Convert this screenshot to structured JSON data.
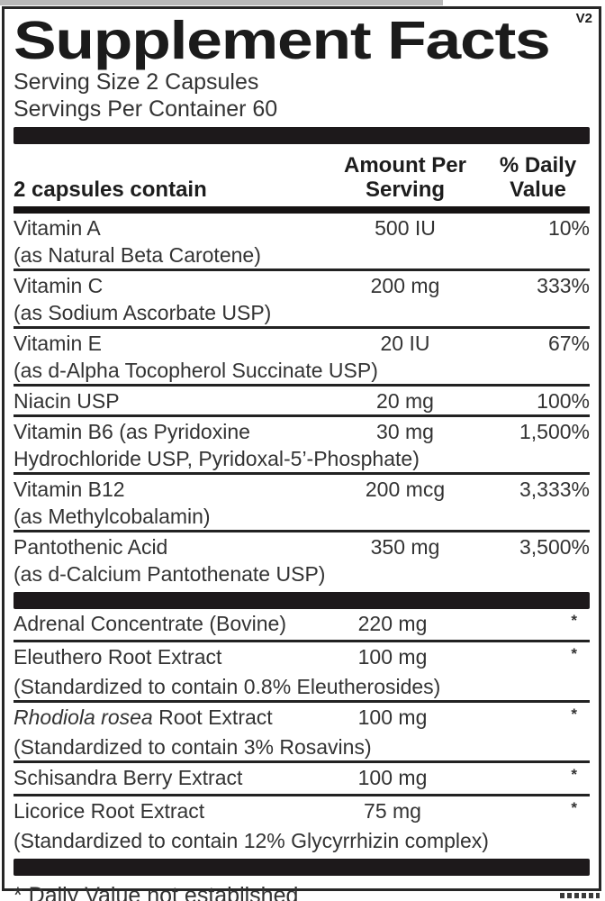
{
  "label": {
    "title": "Supplement Facts",
    "version": "V2",
    "serving_size": "Serving Size 2 Capsules",
    "servings_per_container": "Servings Per Container 60",
    "footnote": "* Daily Value not established",
    "colors": {
      "ink": "#1b1b1b",
      "bar": "#1d191b",
      "background": "#ffffff"
    }
  },
  "table": {
    "columns": {
      "ingredient": "2 capsules contain",
      "amount_line1": "Amount Per",
      "amount_line2": "Serving",
      "dv_line1": "% Daily",
      "dv_line2": "Value"
    },
    "sections": [
      {
        "rows": [
          {
            "name": "Vitamin A",
            "sub": "(as Natural Beta Carotene)",
            "amount": "500 IU",
            "dv": "10%"
          },
          {
            "name": "Vitamin C",
            "sub": "(as Sodium Ascorbate USP)",
            "amount": "200 mg",
            "dv": "333%"
          },
          {
            "name": "Vitamin E",
            "sub": "(as d-Alpha Tocopherol Succinate USP)",
            "amount": "20 IU",
            "dv": "67%"
          },
          {
            "name": "Niacin USP",
            "amount": "20 mg",
            "dv": "100%"
          },
          {
            "name": "Vitamin B6 (as Pyridoxine",
            "sub": "Hydrochloride USP, Pyridoxal-5’-Phosphate)",
            "amount": "30 mg",
            "dv": "1,500%"
          },
          {
            "name": "Vitamin B12",
            "sub": "(as Methylcobalamin)",
            "amount": "200 mcg",
            "dv": "3,333%"
          },
          {
            "name": "Pantothenic Acid",
            "sub": "(as d-Calcium Pantothenate USP)",
            "amount": "350 mg",
            "dv": "3,500%"
          }
        ]
      },
      {
        "rows": [
          {
            "name": "Adrenal Concentrate (Bovine)",
            "amount": "220 mg",
            "dv": "*"
          },
          {
            "name": "Eleuthero Root Extract",
            "sub": "(Standardized to contain 0.8% Eleutherosides)",
            "amount": "100 mg",
            "dv": "*"
          },
          {
            "name_italic": "Rhodiola rosea",
            "name": " Root Extract",
            "sub": "(Standardized to contain 3% Rosavins)",
            "amount": "100 mg",
            "dv": "*"
          },
          {
            "name": "Schisandra Berry Extract",
            "amount": "100 mg",
            "dv": "*"
          },
          {
            "name": "Licorice Root Extract",
            "sub": "(Standardized to contain 12% Glycyrrhizin complex)",
            "amount": "75 mg",
            "dv": "*"
          }
        ]
      }
    ]
  }
}
